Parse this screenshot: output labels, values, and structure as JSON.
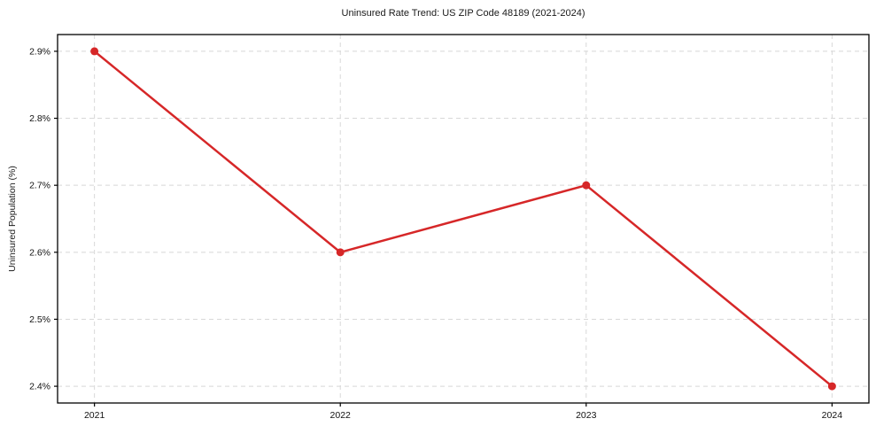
{
  "chart_data": {
    "type": "line",
    "title": "Uninsured Rate Trend: US ZIP Code 48189 (2021-2024)",
    "xlabel": "",
    "ylabel": "Uninsured Population (%)",
    "x": [
      2021,
      2022,
      2023,
      2024
    ],
    "x_tick_labels": [
      "2021",
      "2022",
      "2023",
      "2024"
    ],
    "values": [
      2.9,
      2.6,
      2.7,
      2.4
    ],
    "y_tick_values": [
      2.4,
      2.5,
      2.6,
      2.7,
      2.8,
      2.9
    ],
    "y_tick_labels": [
      "2.4%",
      "2.5%",
      "2.6%",
      "2.7%",
      "2.8%",
      "2.9%"
    ],
    "xlim": [
      2020.85,
      2024.15
    ],
    "ylim": [
      2.375,
      2.925
    ],
    "grid": true,
    "grid_style": "dashed",
    "legend": "none",
    "line_color": "#d62728",
    "marker": "circle",
    "grid_color": "#d8d8d8",
    "frame_color": "#000000",
    "background": "#ffffff"
  }
}
